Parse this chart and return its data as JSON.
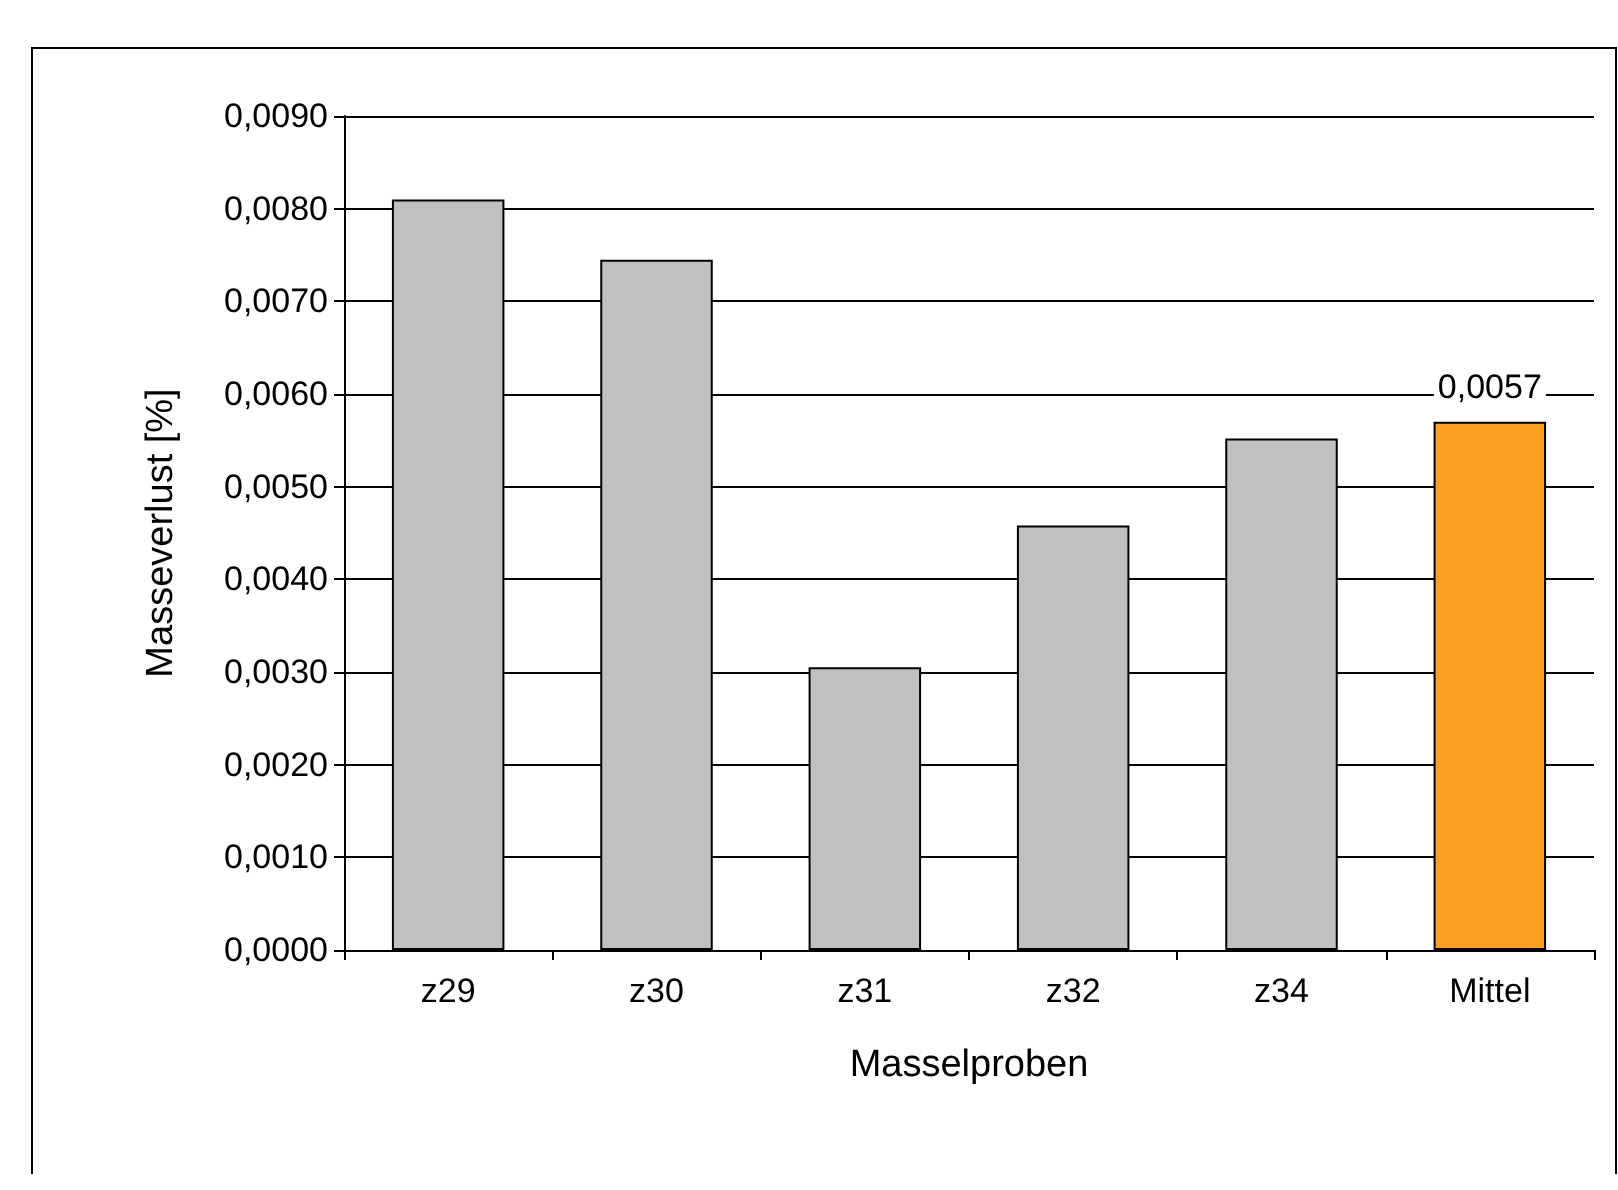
{
  "chart_data": {
    "type": "bar",
    "xlabel": "Masselproben",
    "ylabel": "Masseverlust [%]",
    "categories": [
      "z29",
      "z30",
      "z31",
      "z32",
      "z34",
      "Mittel"
    ],
    "values": [
      0.0081,
      0.00745,
      0.00305,
      0.00458,
      0.00552,
      0.0057
    ],
    "colors": [
      "#c0c0c0",
      "#c0c0c0",
      "#c0c0c0",
      "#c0c0c0",
      "#c0c0c0",
      "#f7a021"
    ],
    "value_labels": [
      null,
      null,
      null,
      null,
      null,
      "0,0057"
    ],
    "ylim": [
      0,
      0.009
    ],
    "yticks": [
      {
        "value": 0,
        "label": "0,0000"
      },
      {
        "value": 0.001,
        "label": "0,0010"
      },
      {
        "value": 0.002,
        "label": "0,0020"
      },
      {
        "value": 0.003,
        "label": "0,0030"
      },
      {
        "value": 0.004,
        "label": "0,0040"
      },
      {
        "value": 0.005,
        "label": "0,0050"
      },
      {
        "value": 0.006,
        "label": "0,0060"
      },
      {
        "value": 0.007,
        "label": "0,0070"
      },
      {
        "value": 0.008,
        "label": "0,0080"
      },
      {
        "value": 0.009,
        "label": "0,0090"
      }
    ],
    "grid": "y"
  }
}
